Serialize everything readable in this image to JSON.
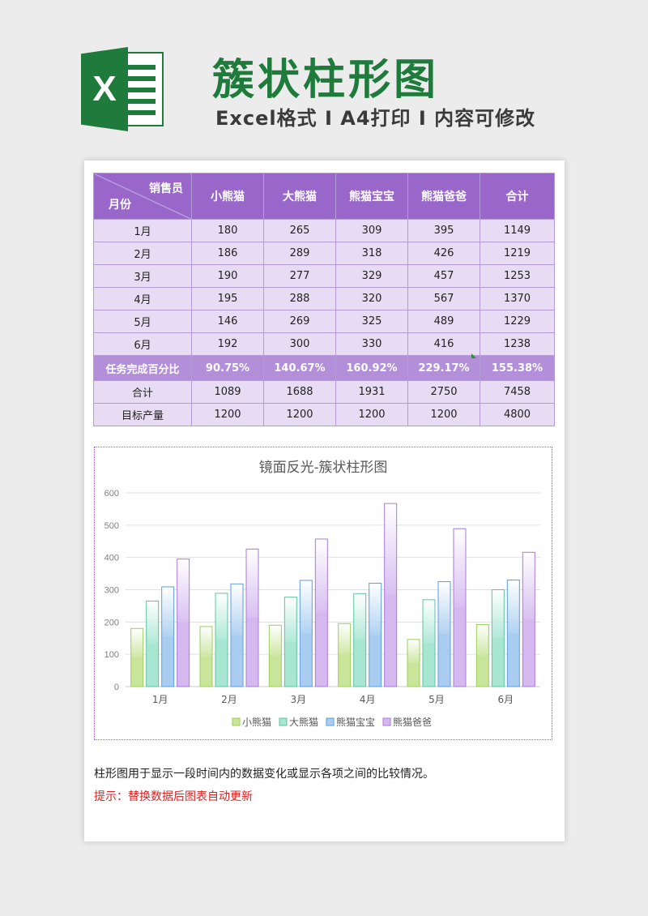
{
  "header": {
    "logo_letter": "X",
    "title": "簇状柱形图",
    "subtitle": "Excel格式 I A4打印 I 内容可修改"
  },
  "table": {
    "corner_top": "销售员",
    "corner_bottom": "月份",
    "columns": [
      "小熊猫",
      "大熊猫",
      "熊猫宝宝",
      "熊猫爸爸",
      "合计"
    ],
    "rows": [
      {
        "label": "1月",
        "cells": [
          "180",
          "265",
          "309",
          "395",
          "1149"
        ]
      },
      {
        "label": "2月",
        "cells": [
          "186",
          "289",
          "318",
          "426",
          "1219"
        ]
      },
      {
        "label": "3月",
        "cells": [
          "190",
          "277",
          "329",
          "457",
          "1253"
        ]
      },
      {
        "label": "4月",
        "cells": [
          "195",
          "288",
          "320",
          "567",
          "1370"
        ]
      },
      {
        "label": "5月",
        "cells": [
          "146",
          "269",
          "325",
          "489",
          "1229"
        ]
      },
      {
        "label": "6月",
        "cells": [
          "192",
          "300",
          "330",
          "416",
          "1238"
        ]
      }
    ],
    "percent_row": {
      "label": "任务完成百分比",
      "cells": [
        "90.75%",
        "140.67%",
        "160.92%",
        "229.17%",
        "155.38%"
      ]
    },
    "total_row": {
      "label": "合计",
      "cells": [
        "1089",
        "1688",
        "1931",
        "2750",
        "7458"
      ]
    },
    "target_row": {
      "label": "目标产量",
      "cells": [
        "1200",
        "1200",
        "1200",
        "1200",
        "4800"
      ]
    }
  },
  "chart_data": {
    "type": "bar",
    "title": "镜面反光-簇状柱形图",
    "categories": [
      "1月",
      "2月",
      "3月",
      "4月",
      "5月",
      "6月"
    ],
    "series": [
      {
        "name": "小熊猫",
        "values": [
          180,
          186,
          190,
          195,
          146,
          192
        ],
        "color": "#c9e59a",
        "stroke": "#9ccf5c"
      },
      {
        "name": "大熊猫",
        "values": [
          265,
          289,
          277,
          288,
          269,
          300
        ],
        "color": "#a8e6d2",
        "stroke": "#5cc4a4"
      },
      {
        "name": "熊猫宝宝",
        "values": [
          309,
          318,
          329,
          320,
          325,
          330
        ],
        "color": "#a9cdf0",
        "stroke": "#5e9ee0"
      },
      {
        "name": "熊猫爸爸",
        "values": [
          395,
          426,
          457,
          567,
          489,
          416
        ],
        "color": "#d4b8ef",
        "stroke": "#a77bd9"
      }
    ],
    "ylim": [
      0,
      600
    ],
    "yticks": [
      0,
      100,
      200,
      300,
      400,
      500,
      600
    ],
    "grid": true,
    "legend": "bottom"
  },
  "notes": {
    "description": "柱形图用于显示一段时间内的数据变化或显示各项之间的比较情况。",
    "tip": "提示：替换数据后图表自动更新"
  },
  "colors": {
    "brand_green": "#1e7b3b",
    "table_header": "#9867c9",
    "table_row": "#e7dcf3",
    "percent_row": "#b38fd9",
    "tip_red": "#e02020"
  }
}
